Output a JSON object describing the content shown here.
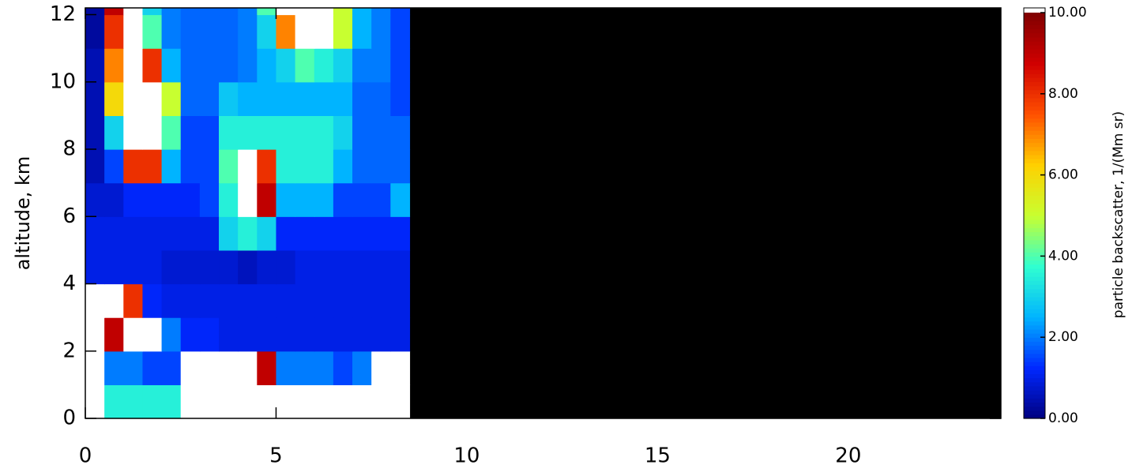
{
  "chart_data": {
    "type": "heatmap",
    "y_label": "altitude, km",
    "colorbar_label": "particle backscatter, 1/(Mm sr)",
    "xlim": [
      0,
      24
    ],
    "xticks": [
      0,
      5,
      10,
      15,
      20
    ],
    "ylim": [
      0,
      12.2
    ],
    "yticks": [
      0,
      2,
      4,
      6,
      8,
      10,
      12
    ],
    "clim": [
      0,
      10
    ],
    "cticks": [
      {
        "value": 0,
        "label": "0.00"
      },
      {
        "value": 2,
        "label": "2.00"
      },
      {
        "value": 4,
        "label": "4.00"
      },
      {
        "value": 6,
        "label": "6.00"
      },
      {
        "value": 8,
        "label": "8.00"
      },
      {
        "value": 10,
        "label": "10.00"
      }
    ],
    "colorscale": [
      "#000080",
      "#0028ff",
      "#00b4ff",
      "#30ffd0",
      "#c8ff30",
      "#ffd000",
      "#ff5000",
      "#d00000",
      "#800000"
    ],
    "over_color": "#ffffff",
    "missing_color": "#000000",
    "x": [
      0,
      0.5,
      1,
      1.5,
      2,
      2.5,
      3,
      3.5,
      4,
      4.5,
      5,
      5.5,
      6,
      6.5,
      7,
      7.5,
      8,
      8.5
    ],
    "y": [
      0,
      1,
      2,
      3,
      4,
      5,
      6,
      7,
      8,
      9,
      10,
      11,
      12,
      12.2
    ],
    "z": [
      [
        11,
        3.5,
        3.5,
        3.5,
        3.5,
        11,
        11,
        11,
        11,
        12,
        11,
        12,
        11,
        11,
        11,
        11,
        12
      ],
      [
        11,
        2,
        2,
        1.5,
        1.5,
        11,
        11,
        11,
        11,
        9,
        2,
        2,
        2,
        1.5,
        2,
        11,
        11
      ],
      [
        11,
        9,
        11,
        11,
        2,
        1.2,
        1.2,
        1,
        1,
        1,
        1,
        1,
        1,
        1,
        1,
        1,
        1
      ],
      [
        11,
        11,
        8,
        1.2,
        1,
        1,
        1,
        1,
        1,
        1,
        1,
        1,
        1,
        1,
        1,
        1,
        1
      ],
      [
        1,
        1,
        1,
        1,
        0.8,
        0.8,
        0.8,
        0.8,
        0.6,
        0.8,
        0.8,
        1,
        1,
        1,
        1,
        1,
        1
      ],
      [
        1,
        1,
        1,
        1,
        1,
        1,
        1,
        3,
        3.5,
        3,
        1.2,
        1.2,
        1.2,
        1.2,
        1.2,
        1.2,
        1.2
      ],
      [
        0.8,
        0.8,
        1.2,
        1.2,
        1.2,
        1.2,
        1.5,
        3.5,
        11,
        9,
        2.5,
        2.5,
        2.5,
        1.5,
        1.5,
        1.5,
        2.5
      ],
      [
        0.5,
        1.5,
        8,
        8,
        2.5,
        1.5,
        1.5,
        4,
        11,
        8,
        3.5,
        3.5,
        3.5,
        2.5,
        1.8,
        1.8,
        1.8
      ],
      [
        0.5,
        3,
        11,
        11,
        4,
        1.5,
        1.5,
        3.5,
        3.5,
        3.5,
        3.5,
        3.5,
        3.5,
        3,
        1.8,
        1.8,
        1.8
      ],
      [
        0.5,
        6,
        11,
        11,
        5,
        1.8,
        1.8,
        2.8,
        2.5,
        2.5,
        2.5,
        2.5,
        2.5,
        2.5,
        1.8,
        1.8,
        1.5
      ],
      [
        0.5,
        7,
        11,
        8,
        2.5,
        1.8,
        1.8,
        1.8,
        2,
        2.5,
        3,
        4,
        3.5,
        3,
        2,
        2,
        1.5
      ],
      [
        0.3,
        8,
        11,
        4,
        2,
        1.8,
        1.8,
        1.8,
        2,
        3,
        7,
        11,
        11,
        5,
        2.5,
        2,
        1.5
      ],
      [
        0.3,
        9,
        11,
        3,
        2,
        1.8,
        1.8,
        1.8,
        2,
        4,
        11,
        11,
        11,
        5,
        2.5,
        2,
        1.5
      ]
    ]
  }
}
